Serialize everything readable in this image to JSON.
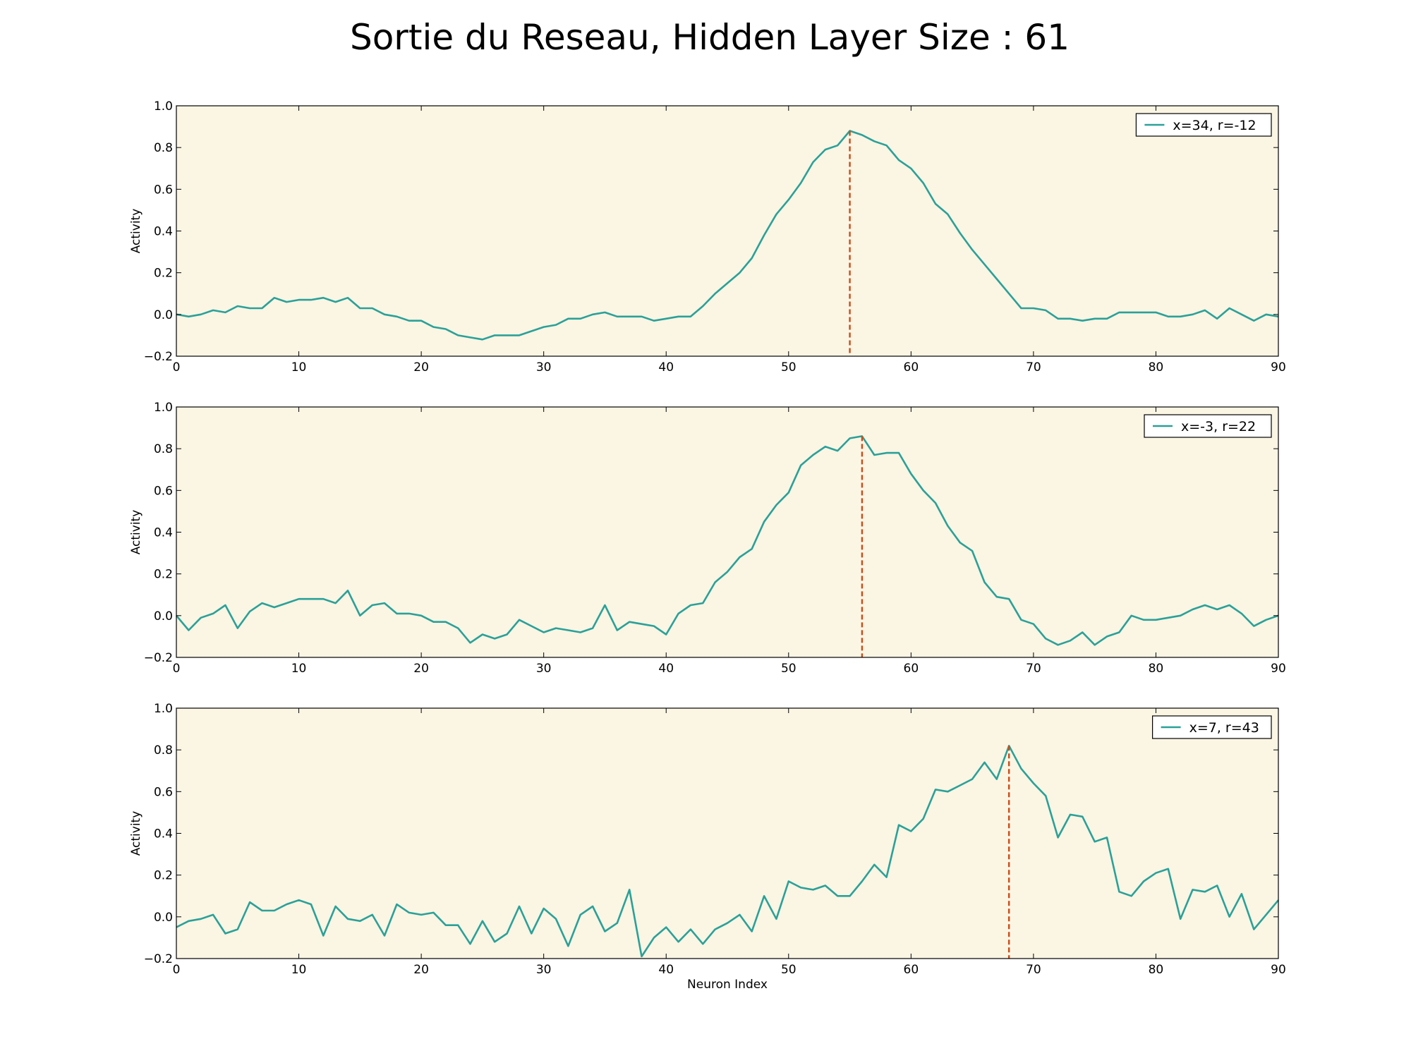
{
  "title": "Sortie du Reseau, Hidden Layer Size : 61",
  "colors": {
    "background": "#fbf5e4",
    "line": "#2aa198",
    "marker": "#cb4b16",
    "frame": "#000000"
  },
  "chart_data": [
    {
      "type": "line",
      "xlabel": "",
      "ylabel": "Activity",
      "xlim": [
        0,
        90
      ],
      "ylim": [
        -0.2,
        1.0
      ],
      "xticks": [
        "0",
        "10",
        "20",
        "30",
        "40",
        "50",
        "60",
        "70",
        "80",
        "90"
      ],
      "yticks": [
        "−0.2",
        "0.0",
        "0.2",
        "0.4",
        "0.6",
        "0.8",
        "1.0"
      ],
      "legend": {
        "position": "top-right"
      },
      "series": [
        {
          "name": "x=34, r=-12",
          "values": [
            0.0,
            -0.01,
            0.0,
            0.02,
            0.01,
            0.04,
            0.03,
            0.03,
            0.08,
            0.06,
            0.07,
            0.07,
            0.08,
            0.06,
            0.08,
            0.03,
            0.03,
            0.0,
            -0.01,
            -0.03,
            -0.03,
            -0.06,
            -0.07,
            -0.1,
            -0.11,
            -0.12,
            -0.1,
            -0.1,
            -0.1,
            -0.08,
            -0.06,
            -0.05,
            -0.02,
            -0.02,
            0.0,
            0.01,
            -0.01,
            -0.01,
            -0.01,
            -0.03,
            -0.02,
            -0.01,
            -0.01,
            0.04,
            0.1,
            0.15,
            0.2,
            0.27,
            0.38,
            0.48,
            0.55,
            0.63,
            0.73,
            0.79,
            0.81,
            0.88,
            0.86,
            0.83,
            0.81,
            0.74,
            0.7,
            0.63,
            0.53,
            0.48,
            0.39,
            0.31,
            0.24,
            0.17,
            0.1,
            0.03,
            0.03,
            0.02,
            -0.02,
            -0.02,
            -0.03,
            -0.02,
            -0.02,
            0.01,
            0.01,
            0.01,
            0.01,
            -0.01,
            -0.01,
            0.0,
            0.02,
            -0.02,
            0.03,
            0.0,
            -0.03,
            0.0,
            -0.01
          ]
        }
      ],
      "marker_x": 55
    },
    {
      "type": "line",
      "xlabel": "",
      "ylabel": "Activity",
      "xlim": [
        0,
        90
      ],
      "ylim": [
        -0.2,
        1.0
      ],
      "xticks": [
        "0",
        "10",
        "20",
        "30",
        "40",
        "50",
        "60",
        "70",
        "80",
        "90"
      ],
      "yticks": [
        "−0.2",
        "0.0",
        "0.2",
        "0.4",
        "0.6",
        "0.8",
        "1.0"
      ],
      "legend": {
        "position": "top-right"
      },
      "series": [
        {
          "name": "x=-3, r=22",
          "values": [
            0.0,
            -0.07,
            -0.01,
            0.01,
            0.05,
            -0.06,
            0.02,
            0.06,
            0.04,
            0.06,
            0.08,
            0.08,
            0.08,
            0.06,
            0.12,
            0.0,
            0.05,
            0.06,
            0.01,
            0.01,
            0.0,
            -0.03,
            -0.03,
            -0.06,
            -0.13,
            -0.09,
            -0.11,
            -0.09,
            -0.02,
            -0.05,
            -0.08,
            -0.06,
            -0.07,
            -0.08,
            -0.06,
            0.05,
            -0.07,
            -0.03,
            -0.04,
            -0.05,
            -0.09,
            0.01,
            0.05,
            0.06,
            0.16,
            0.21,
            0.28,
            0.32,
            0.45,
            0.53,
            0.59,
            0.72,
            0.77,
            0.81,
            0.79,
            0.85,
            0.86,
            0.77,
            0.78,
            0.78,
            0.68,
            0.6,
            0.54,
            0.43,
            0.35,
            0.31,
            0.16,
            0.09,
            0.08,
            -0.02,
            -0.04,
            -0.11,
            -0.14,
            -0.12,
            -0.08,
            -0.14,
            -0.1,
            -0.08,
            0.0,
            -0.02,
            -0.02,
            -0.01,
            0.0,
            0.03,
            0.05,
            0.03,
            0.05,
            0.01,
            -0.05,
            -0.02,
            0.0
          ]
        }
      ],
      "marker_x": 56
    },
    {
      "type": "line",
      "xlabel": "Neuron Index",
      "ylabel": "Activity",
      "xlim": [
        0,
        90
      ],
      "ylim": [
        -0.2,
        1.0
      ],
      "xticks": [
        "0",
        "10",
        "20",
        "30",
        "40",
        "50",
        "60",
        "70",
        "80",
        "90"
      ],
      "yticks": [
        "−0.2",
        "0.0",
        "0.2",
        "0.4",
        "0.6",
        "0.8",
        "1.0"
      ],
      "legend": {
        "position": "top-right"
      },
      "series": [
        {
          "name": "x=7, r=43",
          "values": [
            -0.05,
            -0.02,
            -0.01,
            0.01,
            -0.08,
            -0.06,
            0.07,
            0.03,
            0.03,
            0.06,
            0.08,
            0.06,
            -0.09,
            0.05,
            -0.01,
            -0.02,
            0.01,
            -0.09,
            0.06,
            0.02,
            0.01,
            0.02,
            -0.04,
            -0.04,
            -0.13,
            -0.02,
            -0.12,
            -0.08,
            0.05,
            -0.08,
            0.04,
            -0.01,
            -0.14,
            0.01,
            0.05,
            -0.07,
            -0.03,
            0.13,
            -0.19,
            -0.1,
            -0.05,
            -0.12,
            -0.06,
            -0.13,
            -0.06,
            -0.03,
            0.01,
            -0.07,
            0.1,
            -0.01,
            0.17,
            0.14,
            0.13,
            0.15,
            0.1,
            0.1,
            0.17,
            0.25,
            0.19,
            0.44,
            0.41,
            0.47,
            0.61,
            0.6,
            0.63,
            0.66,
            0.74,
            0.66,
            0.82,
            0.71,
            0.64,
            0.58,
            0.38,
            0.49,
            0.48,
            0.36,
            0.38,
            0.12,
            0.1,
            0.17,
            0.21,
            0.23,
            -0.01,
            0.13,
            0.12,
            0.15,
            0.0,
            0.11,
            -0.06,
            0.01,
            0.08
          ]
        }
      ],
      "marker_x": 68
    }
  ]
}
